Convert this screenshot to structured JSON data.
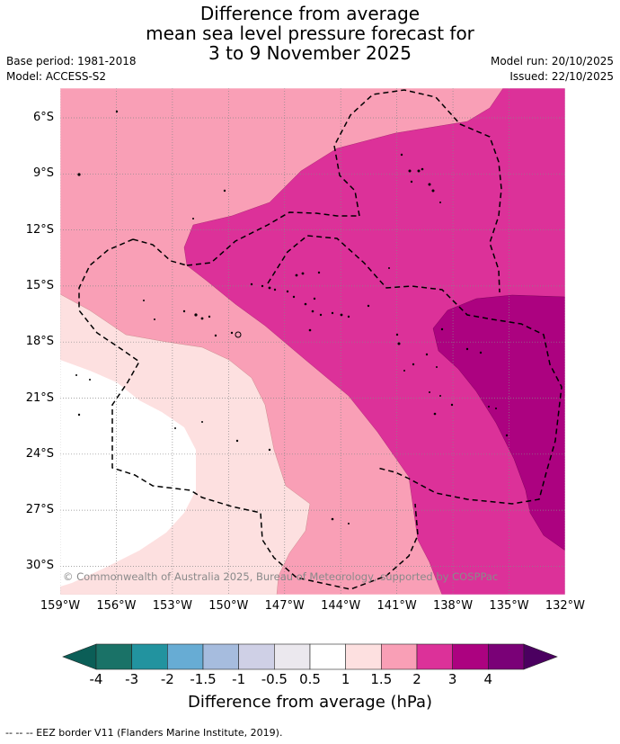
{
  "title": {
    "line1": "Difference from average",
    "line2": "mean sea level pressure forecast for",
    "line3": "3 to 9 November 2025"
  },
  "meta": {
    "base_period": "Base period: 1981-2018",
    "model": "Model: ACCESS-S2",
    "model_run": "Model run: 20/10/2025",
    "issued": "Issued: 22/10/2025"
  },
  "map": {
    "copyright": "© Commonwealth of Australia 2025, Bureau of Meteorology, supported by COSPPac",
    "lat_labels": [
      "6°S",
      "9°S",
      "12°S",
      "15°S",
      "18°S",
      "21°S",
      "24°S",
      "27°S",
      "30°S"
    ],
    "lon_labels": [
      "159°W",
      "156°W",
      "153°W",
      "150°W",
      "147°W",
      "144°W",
      "141°W",
      "138°W",
      "135°W",
      "132°W"
    ],
    "region": {
      "lon_min": -159,
      "lon_max": -132,
      "lat_min": -31.5,
      "lat_max": -4.5
    },
    "colors": {
      "0.5_to_1": "#fde0e0",
      "1_to_1.5": "#f99fb6",
      "1.5_to_2": "#dc3199",
      "2_to_3": "#ac0280",
      "land": "#000000",
      "eez": "#000000",
      "grid": "#888888"
    }
  },
  "colorbar": {
    "ticks": [
      "-4",
      "-3",
      "-2",
      "-1.5",
      "-1",
      "-0.5",
      "0.5",
      "1",
      "1.5",
      "2",
      "3",
      "4"
    ],
    "colors": [
      "#1a7267",
      "#22939f",
      "#67acd4",
      "#a6bcde",
      "#cfd0e6",
      "#ebe8ee",
      "#ffffff",
      "#fde0e0",
      "#f99fb6",
      "#dc3199",
      "#ac0280",
      "#7a0177"
    ],
    "under_color": "#0b5e57",
    "over_color": "#4b0060",
    "label": "Difference from average (hPa)"
  },
  "footnote": "--  --  -- EEZ border V11 (Flanders Marine Institute, 2019)."
}
